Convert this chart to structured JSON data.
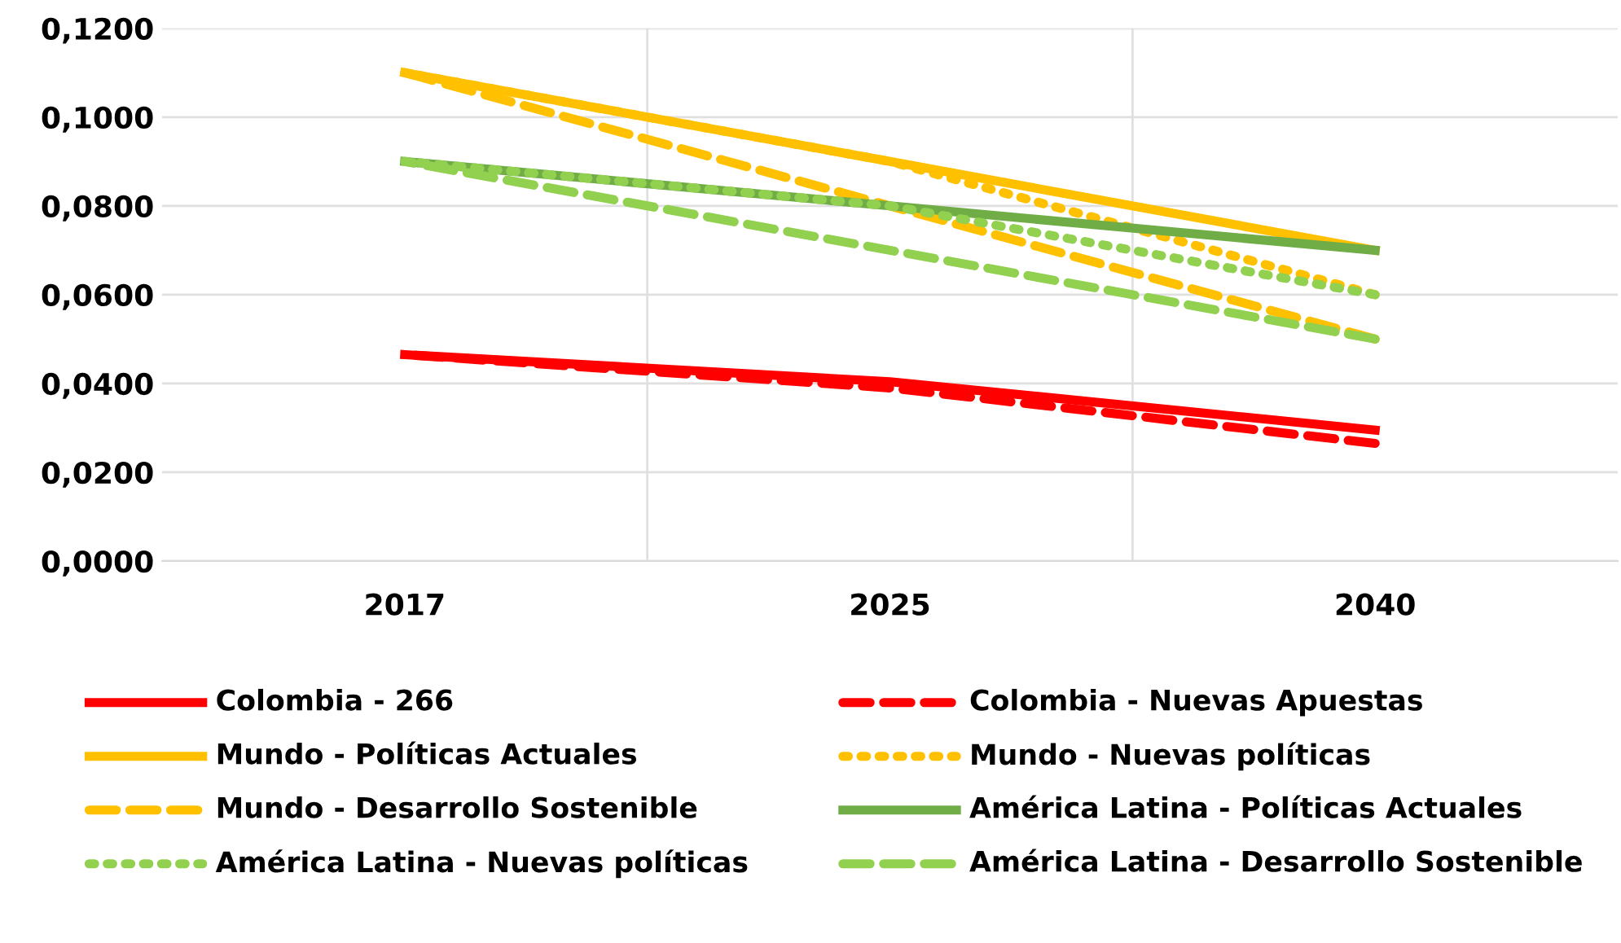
{
  "chart_data": {
    "type": "line",
    "categories": [
      "2017",
      "2025",
      "2040"
    ],
    "series": [
      {
        "name": "Colombia - 266",
        "color": "#ff0000",
        "line_style": "solid",
        "values": [
          0.0465,
          0.0404,
          0.0295
        ]
      },
      {
        "name": "Colombia - Nuevas Apuestas",
        "color": "#ff0000",
        "line_style": "dashed",
        "values": [
          0.0465,
          0.039,
          0.0265
        ]
      },
      {
        "name": "Mundo - Políticas Actuales",
        "color": "#ffc000",
        "line_style": "solid",
        "values": [
          0.11,
          0.09,
          0.07
        ]
      },
      {
        "name": "Mundo - Nuevas políticas",
        "color": "#ffc000",
        "line_style": "dotted",
        "values": [
          0.11,
          0.09,
          0.06
        ]
      },
      {
        "name": "Mundo - Desarrollo Sostenible",
        "color": "#ffc000",
        "line_style": "dashed",
        "values": [
          0.11,
          0.08,
          0.05
        ]
      },
      {
        "name": "América Latina - Políticas Actuales",
        "color": "#70ad47",
        "line_style": "solid",
        "values": [
          0.09,
          0.08,
          0.07
        ]
      },
      {
        "name": "América Latina - Nuevas políticas",
        "color": "#92d050",
        "line_style": "dotted",
        "values": [
          0.09,
          0.08,
          0.06
        ]
      },
      {
        "name": "América Latina - Desarrollo Sostenible",
        "color": "#92d050",
        "line_style": "dashed",
        "values": [
          0.09,
          0.07,
          0.05
        ]
      }
    ],
    "ylim": [
      0,
      0.12
    ],
    "yticks": [
      {
        "value": 0,
        "label": "0,0000"
      },
      {
        "value": 0.02,
        "label": "0,0200"
      },
      {
        "value": 0.04,
        "label": "0,0400"
      },
      {
        "value": 0.06,
        "label": "0,0600"
      },
      {
        "value": 0.08,
        "label": "0,0800"
      },
      {
        "value": 0.1,
        "label": "0,1000"
      },
      {
        "value": 0.12,
        "label": "0,1200"
      }
    ],
    "grid": true,
    "legend": "bottom",
    "marker": "none"
  }
}
